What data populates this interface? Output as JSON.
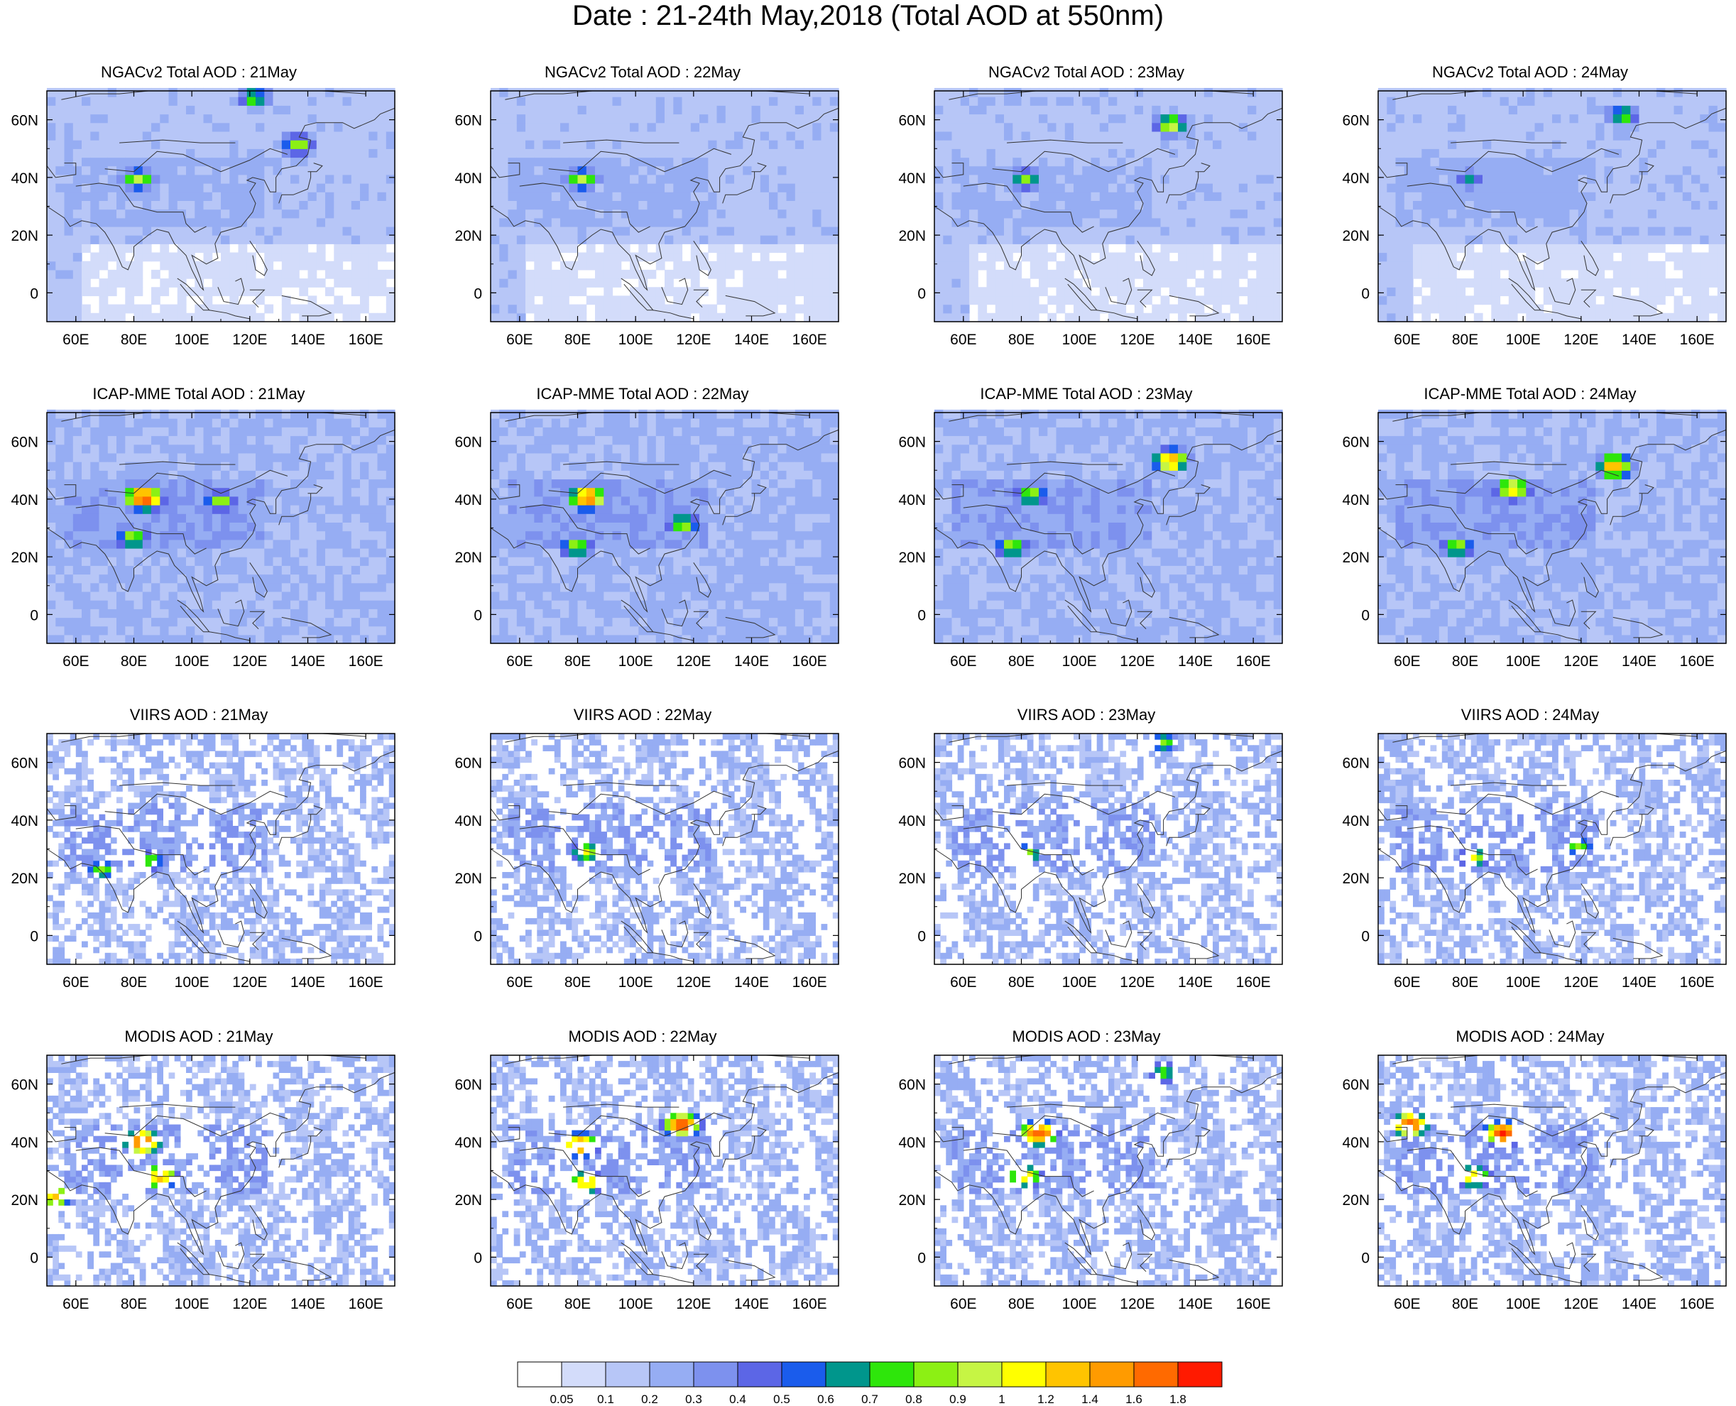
{
  "title": "Date : 21-24th May,2018 (Total AOD at 550nm)",
  "x_ticks": [
    "60E",
    "80E",
    "100E",
    "120E",
    "140E",
    "160E"
  ],
  "y_ticks": [
    "60N",
    "40N",
    "20N",
    "0"
  ],
  "colorbar": {
    "labels": [
      "0.05",
      "0.1",
      "0.2",
      "0.3",
      "0.4",
      "0.5",
      "0.6",
      "0.7",
      "0.8",
      "0.9",
      "1",
      "1.2",
      "1.4",
      "1.6",
      "1.8"
    ],
    "colors": [
      "#ffffff",
      "#d3dcfa",
      "#b7c6f7",
      "#96adf3",
      "#7d91ee",
      "#5c66e6",
      "#1a5cec",
      "#00968c",
      "#2ee60b",
      "#8cf014",
      "#c6f544",
      "#ffff00",
      "#ffc400",
      "#ff9b00",
      "#ff6a00",
      "#ff1a00"
    ]
  },
  "chart_data": [
    {
      "type": "heatmap",
      "title": "NGACv2 Total AOD : 21May",
      "xlim": [
        50,
        170
      ],
      "ylim": [
        -10,
        70
      ],
      "hotspots": [
        {
          "lon": 80,
          "lat": 38,
          "aod": 0.9
        },
        {
          "lon": 120,
          "lat": 66,
          "aod": 0.8
        },
        {
          "lon": 135,
          "lat": 50,
          "aod": 0.9
        }
      ]
    },
    {
      "type": "heatmap",
      "title": "NGACv2 Total AOD : 22May",
      "xlim": [
        50,
        170
      ],
      "ylim": [
        -10,
        70
      ],
      "hotspots": [
        {
          "lon": 80,
          "lat": 38,
          "aod": 0.9
        }
      ]
    },
    {
      "type": "heatmap",
      "title": "NGACv2 Total AOD : 23May",
      "xlim": [
        50,
        170
      ],
      "ylim": [
        -10,
        70
      ],
      "hotspots": [
        {
          "lon": 80,
          "lat": 38,
          "aod": 0.8
        },
        {
          "lon": 130,
          "lat": 57,
          "aod": 1.0
        }
      ]
    },
    {
      "type": "heatmap",
      "title": "NGACv2 Total AOD : 24May",
      "xlim": [
        50,
        170
      ],
      "ylim": [
        -10,
        70
      ],
      "hotspots": [
        {
          "lon": 80,
          "lat": 38,
          "aod": 0.6
        },
        {
          "lon": 133,
          "lat": 60,
          "aod": 0.8
        }
      ]
    },
    {
      "type": "heatmap",
      "title": "ICAP-MME Total AOD : 21May",
      "xlim": [
        50,
        170
      ],
      "ylim": [
        -10,
        70
      ],
      "hotspots": [
        {
          "lon": 82,
          "lat": 39,
          "aod": 1.8
        },
        {
          "lon": 108,
          "lat": 38,
          "aod": 0.9
        },
        {
          "lon": 78,
          "lat": 25,
          "aod": 0.9
        }
      ]
    },
    {
      "type": "heatmap",
      "title": "ICAP-MME Total AOD : 22May",
      "xlim": [
        50,
        170
      ],
      "ylim": [
        -10,
        70
      ],
      "hotspots": [
        {
          "lon": 82,
          "lat": 39,
          "aod": 1.6
        },
        {
          "lon": 115,
          "lat": 30,
          "aod": 0.9
        },
        {
          "lon": 78,
          "lat": 22,
          "aod": 0.9
        }
      ]
    },
    {
      "type": "heatmap",
      "title": "ICAP-MME Total AOD : 23May",
      "xlim": [
        50,
        170
      ],
      "ylim": [
        -10,
        70
      ],
      "hotspots": [
        {
          "lon": 82,
          "lat": 40,
          "aod": 0.9
        },
        {
          "lon": 130,
          "lat": 52,
          "aod": 1.4
        },
        {
          "lon": 75,
          "lat": 22,
          "aod": 0.9
        }
      ]
    },
    {
      "type": "heatmap",
      "title": "ICAP-MME Total AOD : 24May",
      "xlim": [
        50,
        170
      ],
      "ylim": [
        -10,
        70
      ],
      "hotspots": [
        {
          "lon": 95,
          "lat": 42,
          "aod": 1.2
        },
        {
          "lon": 130,
          "lat": 50,
          "aod": 1.4
        },
        {
          "lon": 76,
          "lat": 22,
          "aod": 0.9
        }
      ]
    },
    {
      "type": "heatmap",
      "title": "VIIRS AOD : 21May",
      "xlim": [
        50,
        170
      ],
      "ylim": [
        -10,
        70
      ],
      "hotspots": [
        {
          "lon": 68,
          "lat": 22,
          "aod": 0.8
        },
        {
          "lon": 85,
          "lat": 25,
          "aod": 0.8
        }
      ]
    },
    {
      "type": "heatmap",
      "title": "VIIRS AOD : 22May",
      "xlim": [
        50,
        170
      ],
      "ylim": [
        -10,
        70
      ],
      "hotspots": [
        {
          "lon": 82,
          "lat": 28,
          "aod": 1.0
        }
      ]
    },
    {
      "type": "heatmap",
      "title": "VIIRS AOD : 23May",
      "xlim": [
        50,
        170
      ],
      "ylim": [
        -10,
        70
      ],
      "hotspots": [
        {
          "lon": 80,
          "lat": 27,
          "aod": 1.0
        },
        {
          "lon": 128,
          "lat": 66,
          "aod": 0.8
        }
      ]
    },
    {
      "type": "heatmap",
      "title": "VIIRS AOD : 24May",
      "xlim": [
        50,
        170
      ],
      "ylim": [
        -10,
        70
      ],
      "hotspots": [
        {
          "lon": 82,
          "lat": 26,
          "aod": 1.0
        },
        {
          "lon": 118,
          "lat": 30,
          "aod": 0.8
        }
      ]
    },
    {
      "type": "heatmap",
      "title": "MODIS AOD : 21May",
      "xlim": [
        50,
        170
      ],
      "ylim": [
        -10,
        70
      ],
      "hotspots": [
        {
          "lon": 82,
          "lat": 39,
          "aod": 1.8
        },
        {
          "lon": 88,
          "lat": 27,
          "aod": 1.4
        },
        {
          "lon": 52,
          "lat": 20,
          "aod": 1.2
        }
      ]
    },
    {
      "type": "heatmap",
      "title": "MODIS AOD : 22May",
      "xlim": [
        50,
        170
      ],
      "ylim": [
        -10,
        70
      ],
      "hotspots": [
        {
          "lon": 80,
          "lat": 38,
          "aod": 1.6
        },
        {
          "lon": 115,
          "lat": 45,
          "aod": 1.8
        },
        {
          "lon": 82,
          "lat": 25,
          "aod": 1.2
        }
      ]
    },
    {
      "type": "heatmap",
      "title": "MODIS AOD : 23May",
      "xlim": [
        50,
        170
      ],
      "ylim": [
        -10,
        70
      ],
      "hotspots": [
        {
          "lon": 85,
          "lat": 42,
          "aod": 1.8
        },
        {
          "lon": 80,
          "lat": 27,
          "aod": 1.2
        },
        {
          "lon": 128,
          "lat": 63,
          "aod": 0.8
        }
      ]
    },
    {
      "type": "heatmap",
      "title": "MODIS AOD : 24May",
      "xlim": [
        50,
        170
      ],
      "ylim": [
        -10,
        70
      ],
      "hotspots": [
        {
          "lon": 92,
          "lat": 42,
          "aod": 1.8
        },
        {
          "lon": 82,
          "lat": 27,
          "aod": 1.2
        },
        {
          "lon": 60,
          "lat": 45,
          "aod": 1.8
        }
      ]
    }
  ]
}
